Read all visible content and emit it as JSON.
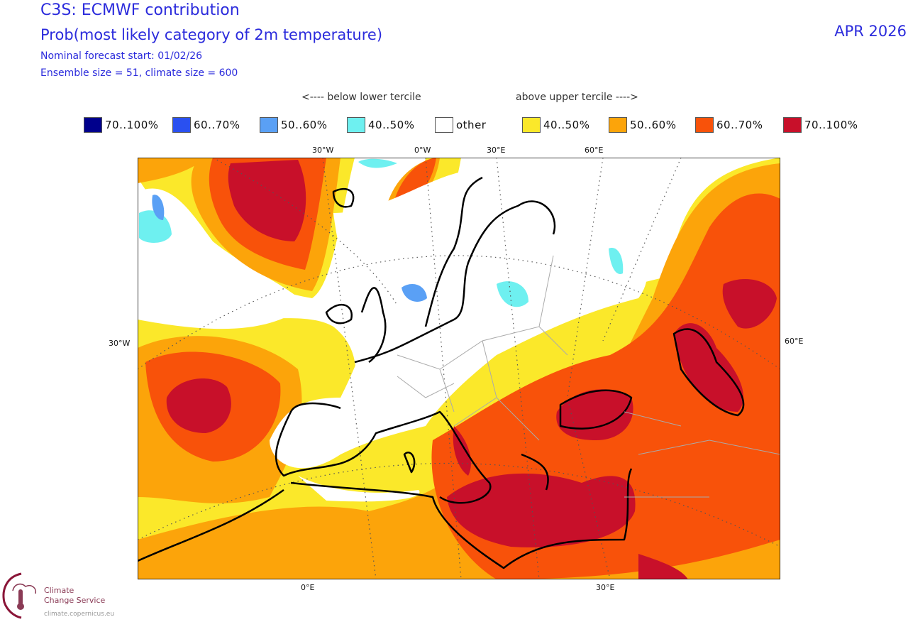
{
  "header": {
    "title": "C3S: ECMWF contribution",
    "subtitle": "Prob(most likely category of 2m temperature)",
    "forecast_start": "Nominal forecast start: 01/02/26",
    "ensemble": "Ensemble size = 51, climate size = 600",
    "valid_month": "APR 2026"
  },
  "legend": {
    "below_caption": "<---- below lower tercile",
    "above_caption": "above upper tercile ---->",
    "items": [
      {
        "label": "70..100%",
        "color": "#00008c"
      },
      {
        "label": "60..70%",
        "color": "#2a50f0"
      },
      {
        "label": "50..60%",
        "color": "#5aa0f5"
      },
      {
        "label": "40..50%",
        "color": "#6ef0f0"
      },
      {
        "label": "other",
        "color": "#ffffff"
      },
      {
        "label": "40..50%",
        "color": "#fbe82a"
      },
      {
        "label": "50..60%",
        "color": "#fca40a"
      },
      {
        "label": "60..70%",
        "color": "#f8520a"
      },
      {
        "label": "70..100%",
        "color": "#c8102a"
      }
    ]
  },
  "axes": {
    "top": [
      "30°W",
      "0°W",
      "30°E",
      "60°E"
    ],
    "left": "30°W",
    "right": "60°E",
    "bottom": [
      "0°E",
      "30°E"
    ]
  },
  "logo": {
    "line1": "Climate",
    "line2": "Change Service",
    "url": "climate.copernicus.eu"
  }
}
